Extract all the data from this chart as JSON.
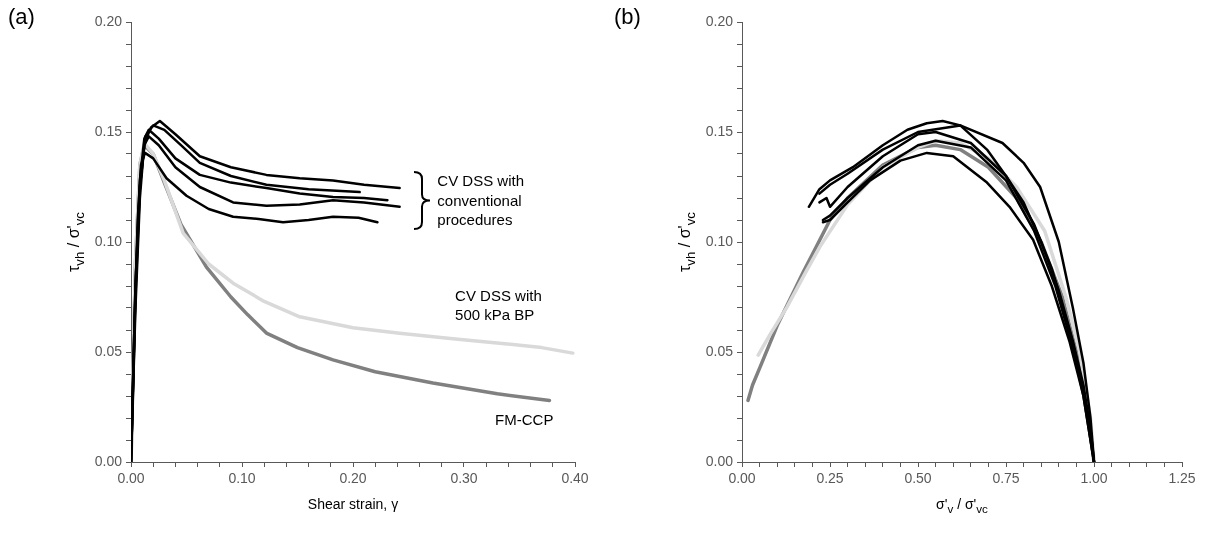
{
  "chart_data": [
    {
      "type": "line",
      "title": "(a)",
      "xlabel": "Shear strain, γ",
      "ylabel": "τ$_{vh}$ / σ'$_{vc}$",
      "legend": false,
      "marker": "none",
      "line_style": "solid",
      "xlim": [
        0,
        0.4
      ],
      "ylim": [
        0,
        0.2
      ],
      "xticks": [
        {
          "value": 0,
          "label": "0.00"
        },
        {
          "value": 0.02,
          "label": null
        },
        {
          "value": 0.04,
          "label": null
        },
        {
          "value": 0.06,
          "label": null
        },
        {
          "value": 0.08,
          "label": null
        },
        {
          "value": 0.1,
          "label": "0.10"
        },
        {
          "value": 0.12,
          "label": null
        },
        {
          "value": 0.14,
          "label": null
        },
        {
          "value": 0.16,
          "label": null
        },
        {
          "value": 0.18,
          "label": null
        },
        {
          "value": 0.2,
          "label": "0.20"
        },
        {
          "value": 0.22,
          "label": null
        },
        {
          "value": 0.24,
          "label": null
        },
        {
          "value": 0.26,
          "label": null
        },
        {
          "value": 0.28,
          "label": null
        },
        {
          "value": 0.3,
          "label": "0.30"
        },
        {
          "value": 0.32,
          "label": null
        },
        {
          "value": 0.34,
          "label": null
        },
        {
          "value": 0.36,
          "label": null
        },
        {
          "value": 0.38,
          "label": null
        },
        {
          "value": 0.4,
          "label": "0.40"
        }
      ],
      "yticks": [
        {
          "value": 0,
          "label": "0.00"
        },
        {
          "value": 0.01,
          "label": null
        },
        {
          "value": 0.02,
          "label": null
        },
        {
          "value": 0.03,
          "label": null
        },
        {
          "value": 0.04,
          "label": null
        },
        {
          "value": 0.05,
          "label": "0.05"
        },
        {
          "value": 0.06,
          "label": null
        },
        {
          "value": 0.07,
          "label": null
        },
        {
          "value": 0.08,
          "label": null
        },
        {
          "value": 0.09,
          "label": null
        },
        {
          "value": 0.1,
          "label": "0.10"
        },
        {
          "value": 0.11,
          "label": null
        },
        {
          "value": 0.12,
          "label": null
        },
        {
          "value": 0.13,
          "label": null
        },
        {
          "value": 0.14,
          "label": null
        },
        {
          "value": 0.15,
          "label": "0.15"
        },
        {
          "value": 0.16,
          "label": null
        },
        {
          "value": 0.17,
          "label": null
        },
        {
          "value": 0.18,
          "label": null
        },
        {
          "value": 0.19,
          "label": null
        },
        {
          "value": 0.2,
          "label": "0.20"
        }
      ],
      "series": [
        {
          "color": "#000000",
          "x": [
            0,
            0.004,
            0.008,
            0.012,
            0.018,
            0.026,
            0.04,
            0.062,
            0.09,
            0.122,
            0.152,
            0.182,
            0.21,
            0.242
          ],
          "values": [
            0,
            0.07,
            0.12,
            0.145,
            0.152,
            0.155,
            0.149,
            0.139,
            0.134,
            0.1305,
            0.129,
            0.128,
            0.126,
            0.1245
          ]
        },
        {
          "color": "#000000",
          "x": [
            0,
            0.004,
            0.008,
            0.013,
            0.02,
            0.03,
            0.045,
            0.062,
            0.09,
            0.122,
            0.16,
            0.206
          ],
          "values": [
            0,
            0.075,
            0.125,
            0.148,
            0.153,
            0.151,
            0.144,
            0.136,
            0.13,
            0.126,
            0.124,
            0.1227
          ]
        },
        {
          "color": "#000000",
          "x": [
            0,
            0.004,
            0.008,
            0.012,
            0.016,
            0.025,
            0.04,
            0.062,
            0.09,
            0.122,
            0.152,
            0.182,
            0.21,
            0.231
          ],
          "values": [
            0,
            0.08,
            0.128,
            0.147,
            0.151,
            0.147,
            0.138,
            0.1305,
            0.127,
            0.1245,
            0.122,
            0.1205,
            0.12,
            0.119
          ]
        },
        {
          "color": "#000000",
          "x": [
            0,
            0.004,
            0.008,
            0.012,
            0.016,
            0.025,
            0.04,
            0.062,
            0.092,
            0.122,
            0.152,
            0.182,
            0.21,
            0.242
          ],
          "values": [
            0,
            0.08,
            0.125,
            0.144,
            0.148,
            0.144,
            0.134,
            0.125,
            0.118,
            0.1165,
            0.117,
            0.119,
            0.118,
            0.116
          ]
        },
        {
          "color": "#000000",
          "x": [
            0,
            0.003,
            0.006,
            0.009,
            0.0126,
            0.02,
            0.032,
            0.05,
            0.07,
            0.092,
            0.115,
            0.137,
            0.16,
            0.182,
            0.205,
            0.222
          ],
          "values": [
            0,
            0.06,
            0.11,
            0.135,
            0.1405,
            0.138,
            0.129,
            0.121,
            0.115,
            0.1115,
            0.1105,
            0.109,
            0.11,
            0.1115,
            0.111,
            0.109
          ]
        },
        {
          "color": "#d9d9d9",
          "x": [
            0,
            0.004,
            0.008,
            0.012,
            0.02,
            0.03,
            0.047,
            0.07,
            0.092,
            0.12,
            0.152,
            0.2,
            0.242,
            0.29,
            0.332,
            0.37,
            0.398
          ],
          "values": [
            0,
            0.09,
            0.135,
            0.145,
            0.14,
            0.128,
            0.104,
            0.09,
            0.0813,
            0.073,
            0.066,
            0.061,
            0.0585,
            0.056,
            0.054,
            0.052,
            0.0495
          ]
        },
        {
          "color": "#808080",
          "x": [
            0,
            0.004,
            0.008,
            0.012,
            0.02,
            0.03,
            0.045,
            0.068,
            0.09,
            0.105,
            0.122,
            0.15,
            0.182,
            0.22,
            0.272,
            0.33,
            0.377
          ],
          "values": [
            0,
            0.09,
            0.135,
            0.144,
            0.14,
            0.127,
            0.108,
            0.0886,
            0.075,
            0.067,
            0.0586,
            0.052,
            0.0464,
            0.041,
            0.0359,
            0.031,
            0.028
          ]
        }
      ],
      "annotations": [
        "CV DSS with\nconventional\nprocedures",
        "CV DSS with\n500 kPa BP",
        "FM-CCP"
      ]
    },
    {
      "type": "line",
      "title": "(b)",
      "xlabel": "σ'$_{v}$ / σ'$_{vc}$",
      "ylabel": "τ$_{vh}$ / σ'$_{vc}$",
      "legend": false,
      "marker": "none",
      "line_style": "solid",
      "xlim": [
        0,
        1.25
      ],
      "ylim": [
        0,
        0.2
      ],
      "xticks": [
        {
          "value": 0,
          "label": "0.00"
        },
        {
          "value": 0.05,
          "label": null
        },
        {
          "value": 0.1,
          "label": null
        },
        {
          "value": 0.15,
          "label": null
        },
        {
          "value": 0.2,
          "label": null
        },
        {
          "value": 0.25,
          "label": "0.25"
        },
        {
          "value": 0.3,
          "label": null
        },
        {
          "value": 0.35,
          "label": null
        },
        {
          "value": 0.4,
          "label": null
        },
        {
          "value": 0.45,
          "label": null
        },
        {
          "value": 0.5,
          "label": "0.50"
        },
        {
          "value": 0.55,
          "label": null
        },
        {
          "value": 0.6,
          "label": null
        },
        {
          "value": 0.65,
          "label": null
        },
        {
          "value": 0.7,
          "label": null
        },
        {
          "value": 0.75,
          "label": "0.75"
        },
        {
          "value": 0.8,
          "label": null
        },
        {
          "value": 0.85,
          "label": null
        },
        {
          "value": 0.9,
          "label": null
        },
        {
          "value": 0.95,
          "label": null
        },
        {
          "value": 1,
          "label": "1.00"
        },
        {
          "value": 1.05,
          "label": null
        },
        {
          "value": 1.1,
          "label": null
        },
        {
          "value": 1.15,
          "label": null
        },
        {
          "value": 1.2,
          "label": null
        },
        {
          "value": 1.25,
          "label": "1.25"
        }
      ],
      "yticks": [
        {
          "value": 0,
          "label": "0.00"
        },
        {
          "value": 0.01,
          "label": null
        },
        {
          "value": 0.02,
          "label": null
        },
        {
          "value": 0.03,
          "label": null
        },
        {
          "value": 0.04,
          "label": null
        },
        {
          "value": 0.05,
          "label": "0.05"
        },
        {
          "value": 0.06,
          "label": null
        },
        {
          "value": 0.07,
          "label": null
        },
        {
          "value": 0.08,
          "label": null
        },
        {
          "value": 0.09,
          "label": null
        },
        {
          "value": 0.1,
          "label": "0.10"
        },
        {
          "value": 0.11,
          "label": null
        },
        {
          "value": 0.12,
          "label": null
        },
        {
          "value": 0.13,
          "label": null
        },
        {
          "value": 0.14,
          "label": null
        },
        {
          "value": 0.15,
          "label": "0.15"
        },
        {
          "value": 0.16,
          "label": null
        },
        {
          "value": 0.17,
          "label": null
        },
        {
          "value": 0.18,
          "label": null
        },
        {
          "value": 0.19,
          "label": null
        },
        {
          "value": 0.2,
          "label": "0.20"
        }
      ],
      "series": [
        {
          "color": "#000000",
          "x": [
            0.19,
            0.22,
            0.25,
            0.315,
            0.4,
            0.47,
            0.525,
            0.57,
            0.62,
            0.696,
            0.75,
            0.8,
            0.85,
            0.9,
            0.94,
            0.97,
            0.99,
            1.0
          ],
          "values": [
            0.116,
            0.124,
            0.128,
            0.134,
            0.144,
            0.151,
            0.154,
            0.155,
            0.153,
            0.142,
            0.13,
            0.118,
            0.1,
            0.078,
            0.055,
            0.035,
            0.015,
            0
          ]
        },
        {
          "color": "#000000",
          "x": [
            0.22,
            0.25,
            0.3,
            0.4,
            0.5,
            0.62,
            0.74,
            0.8,
            0.847,
            0.9,
            0.94,
            0.97,
            0.99,
            1.0
          ],
          "values": [
            0.122,
            0.126,
            0.131,
            0.142,
            0.15,
            0.153,
            0.145,
            0.136,
            0.125,
            0.1,
            0.07,
            0.045,
            0.02,
            0
          ]
        },
        {
          "color": "#000000",
          "x": [
            0.22,
            0.24,
            0.25,
            0.3,
            0.4,
            0.5,
            0.55,
            0.65,
            0.75,
            0.83,
            0.88,
            0.93,
            0.96,
            0.99,
            1.0
          ],
          "values": [
            0.118,
            0.12,
            0.116,
            0.125,
            0.139,
            0.149,
            0.15,
            0.145,
            0.13,
            0.108,
            0.088,
            0.06,
            0.04,
            0.015,
            0
          ]
        },
        {
          "color": "#000000",
          "x": [
            0.23,
            0.25,
            0.3,
            0.4,
            0.5,
            0.55,
            0.65,
            0.75,
            0.83,
            0.89,
            0.94,
            0.97,
            1.0
          ],
          "values": [
            0.11,
            0.112,
            0.12,
            0.134,
            0.144,
            0.146,
            0.143,
            0.128,
            0.105,
            0.08,
            0.052,
            0.03,
            0
          ]
        },
        {
          "color": "#000000",
          "x": [
            0.23,
            0.25,
            0.3,
            0.364,
            0.45,
            0.525,
            0.6,
            0.696,
            0.76,
            0.827,
            0.88,
            0.93,
            0.97,
            1.0
          ],
          "values": [
            0.109,
            0.11,
            0.118,
            0.128,
            0.137,
            0.1405,
            0.139,
            0.127,
            0.116,
            0.101,
            0.08,
            0.055,
            0.03,
            0
          ]
        },
        {
          "color": "#d9d9d9",
          "x": [
            0.046,
            0.08,
            0.128,
            0.18,
            0.222,
            0.3,
            0.4,
            0.5,
            0.55,
            0.62,
            0.7,
            0.78,
            0.86,
            0.92,
            0.96,
            0.99,
            1.0
          ],
          "values": [
            0.0486,
            0.058,
            0.0705,
            0.086,
            0.098,
            0.117,
            0.134,
            0.143,
            0.146,
            0.145,
            0.138,
            0.125,
            0.105,
            0.075,
            0.05,
            0.02,
            0
          ]
        },
        {
          "color": "#808080",
          "x": [
            0.017,
            0.03,
            0.051,
            0.1,
            0.173,
            0.25,
            0.3,
            0.4,
            0.5,
            0.55,
            0.62,
            0.7,
            0.78,
            0.85,
            0.91,
            0.95,
            0.98,
            1.0
          ],
          "values": [
            0.028,
            0.035,
            0.043,
            0.062,
            0.086,
            0.11,
            0.12,
            0.135,
            0.143,
            0.144,
            0.142,
            0.134,
            0.12,
            0.1,
            0.075,
            0.05,
            0.025,
            0
          ]
        }
      ]
    }
  ]
}
